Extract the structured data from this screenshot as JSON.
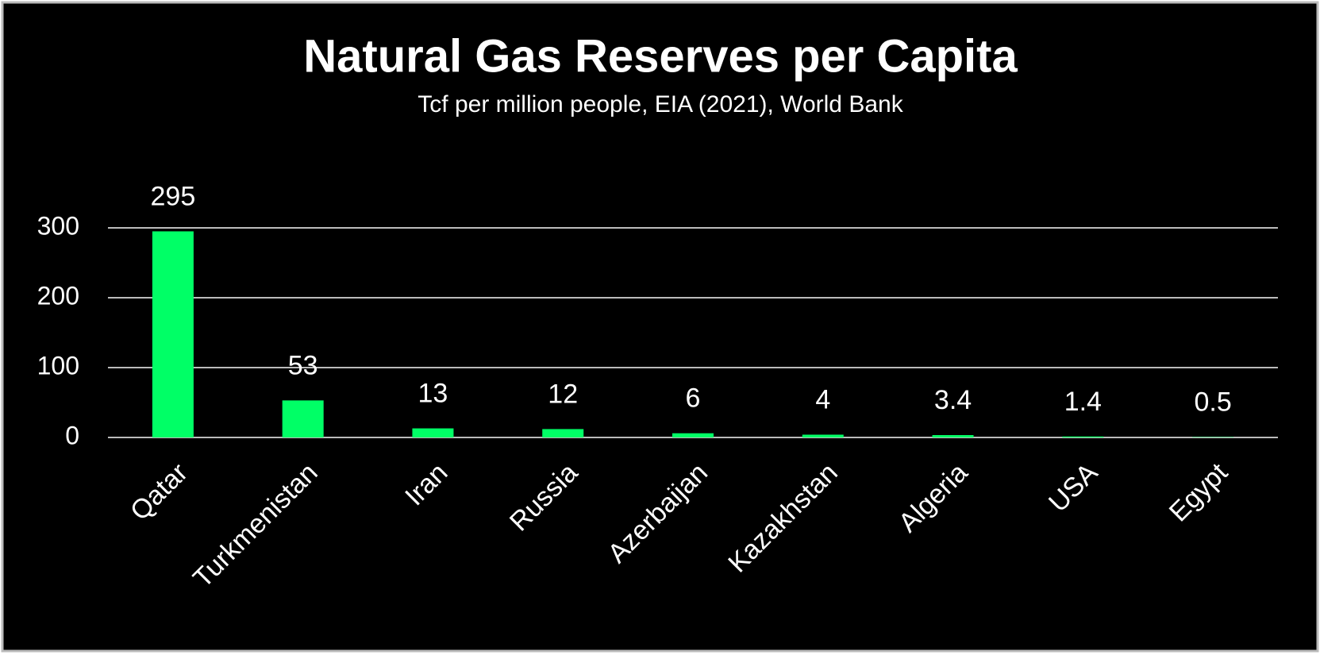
{
  "chart_data": {
    "type": "bar",
    "title": "Natural Gas Reserves per Capita",
    "subtitle": "Tcf per million people, EIA (2021), World Bank",
    "categories": [
      "Qatar",
      "Turkmenistan",
      "Iran",
      "Russia",
      "Azerbaijan",
      "Kazakhstan",
      "Algeria",
      "USA",
      "Egypt"
    ],
    "values": [
      295,
      53,
      13,
      12,
      6,
      4,
      3.4,
      1.4,
      0.5
    ],
    "color": "#00ff66",
    "ylim": [
      0,
      300
    ],
    "yticks": [
      0,
      100,
      200,
      300
    ],
    "grid": true
  }
}
